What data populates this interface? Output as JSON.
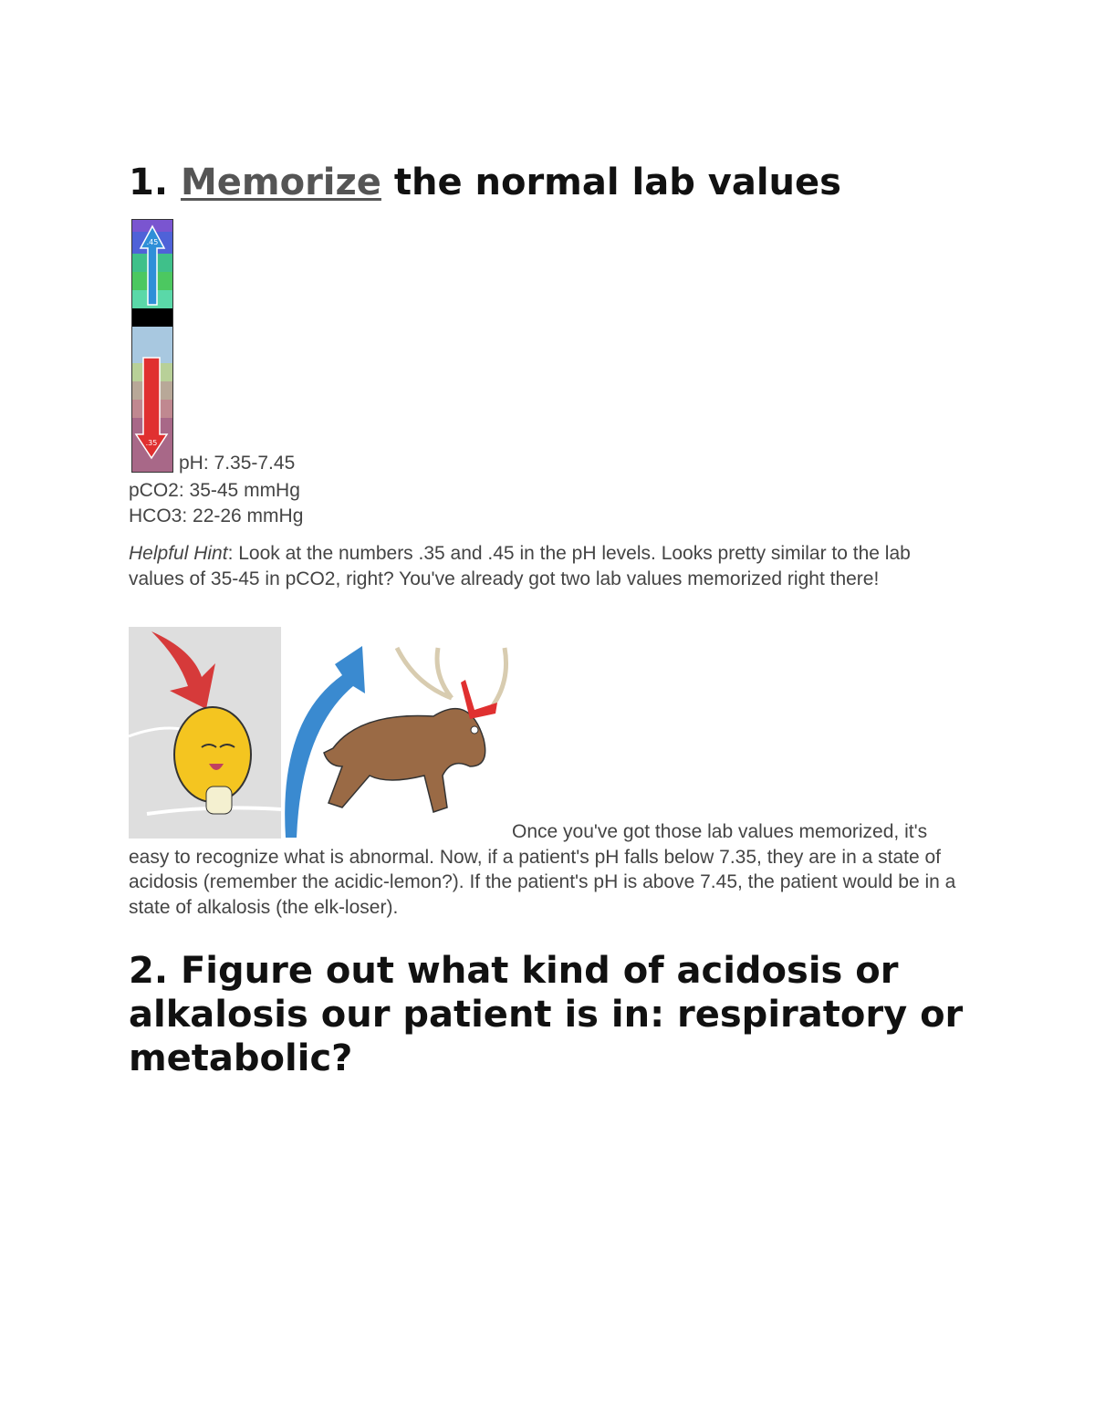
{
  "section1": {
    "number": "1.",
    "link_text": "Memorize",
    "title_rest": " the normal lab values"
  },
  "ph_bar": {
    "top_label": ".45",
    "bottom_label": ".35",
    "up_arrow_color": "#2f8fd8",
    "down_arrow_color": "#e03030"
  },
  "lab_values": {
    "ph": "pH: 7.35-7.45",
    "pco2": "pCO2: 35-45 mmHg",
    "hco3": "HCO3: 22-26 mmHg"
  },
  "hint": {
    "label": "Helpful Hint",
    "text": ": Look at the numbers .35 and .45 in the pH levels. Looks pretty similar to the lab values of 35-45 in pCO2, right? You've already got two lab values memorized right there!"
  },
  "illustrations": {
    "lemon": "acidic-lemon illustration",
    "elk": "elk-loser illustration"
  },
  "paragraph": "Once you've got those lab values memorized, it's easy to recognize what is abnormal. Now, if a patient's pH falls below 7.35, they are in a state of acidosis (remember the acidic-lemon?). If the patient's pH is above 7.45, the patient would be in a state of alkalosis (the elk-loser).",
  "section2": {
    "title": "2. Figure out what kind of acidosis or alkalosis our patient is in: respiratory or metabolic?"
  }
}
